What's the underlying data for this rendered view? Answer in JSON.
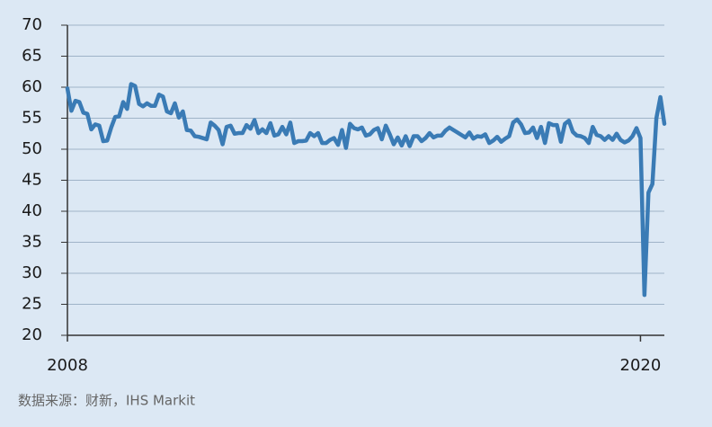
{
  "chart_data": {
    "type": "line",
    "x": [
      2008,
      2008.083,
      2008.167,
      2008.25,
      2008.333,
      2008.417,
      2008.5,
      2008.583,
      2008.667,
      2008.75,
      2008.833,
      2008.917,
      2009,
      2009.083,
      2009.167,
      2009.25,
      2009.333,
      2009.417,
      2009.5,
      2009.583,
      2009.667,
      2009.75,
      2009.833,
      2009.917,
      2010,
      2010.083,
      2010.167,
      2010.25,
      2010.333,
      2010.417,
      2010.5,
      2010.583,
      2010.667,
      2010.75,
      2010.833,
      2010.917,
      2011,
      2011.083,
      2011.167,
      2011.25,
      2011.333,
      2011.417,
      2011.5,
      2011.583,
      2011.667,
      2011.75,
      2011.833,
      2011.917,
      2012,
      2012.083,
      2012.167,
      2012.25,
      2012.333,
      2012.417,
      2012.5,
      2012.583,
      2012.667,
      2012.75,
      2012.833,
      2012.917,
      2013,
      2013.083,
      2013.167,
      2013.25,
      2013.333,
      2013.417,
      2013.5,
      2013.583,
      2013.667,
      2013.75,
      2013.833,
      2013.917,
      2014,
      2014.083,
      2014.167,
      2014.25,
      2014.333,
      2014.417,
      2014.5,
      2014.583,
      2014.667,
      2014.75,
      2014.833,
      2014.917,
      2015,
      2015.083,
      2015.167,
      2015.25,
      2015.333,
      2015.417,
      2015.5,
      2015.583,
      2015.667,
      2015.75,
      2015.833,
      2015.917,
      2016,
      2016.083,
      2016.167,
      2016.25,
      2016.333,
      2016.417,
      2016.5,
      2016.583,
      2016.667,
      2016.75,
      2016.833,
      2016.917,
      2017,
      2017.083,
      2017.167,
      2017.25,
      2017.333,
      2017.417,
      2017.5,
      2017.583,
      2017.667,
      2017.75,
      2017.833,
      2017.917,
      2018,
      2018.083,
      2018.167,
      2018.25,
      2018.333,
      2018.417,
      2018.5,
      2018.583,
      2018.667,
      2018.75,
      2018.833,
      2018.917,
      2019,
      2019.083,
      2019.167,
      2019.25,
      2019.333,
      2019.417,
      2019.5,
      2019.583,
      2019.667,
      2019.75,
      2019.833,
      2019.917,
      2020,
      2020.083,
      2020.167,
      2020.25,
      2020.333,
      2020.417,
      2020.5
    ],
    "values": [
      59.8,
      56.2,
      57.8,
      57.6,
      55.9,
      55.7,
      53.2,
      54.0,
      53.8,
      51.3,
      51.4,
      53.5,
      55.2,
      55.3,
      57.6,
      56.5,
      60.5,
      60.2,
      57.3,
      56.9,
      57.4,
      57.0,
      57.0,
      58.8,
      58.5,
      56.1,
      55.8,
      57.4,
      55.1,
      56.1,
      53.1,
      53.0,
      52.1,
      52.0,
      51.8,
      51.6,
      54.3,
      53.8,
      53.1,
      50.8,
      53.6,
      53.8,
      52.5,
      52.6,
      52.6,
      53.9,
      53.3,
      54.7,
      52.6,
      53.2,
      52.6,
      54.2,
      52.2,
      52.4,
      53.6,
      52.4,
      54.3,
      51.0,
      51.3,
      51.3,
      51.4,
      52.6,
      52.1,
      52.6,
      51.0,
      51.0,
      51.5,
      51.8,
      50.7,
      53.1,
      50.2,
      54.1,
      53.4,
      53.2,
      53.5,
      52.2,
      52.4,
      53.1,
      53.4,
      51.6,
      53.8,
      52.4,
      50.8,
      51.9,
      50.6,
      52.1,
      50.5,
      52.1,
      52.1,
      51.3,
      51.8,
      52.6,
      51.9,
      52.2,
      52.2,
      53.0,
      53.5,
      53.1,
      52.7,
      52.3,
      51.9,
      52.7,
      51.7,
      52.1,
      52.0,
      52.4,
      51.0,
      51.4,
      52.0,
      51.2,
      51.7,
      52.1,
      54.3,
      54.8,
      54.0,
      52.6,
      52.7,
      53.5,
      51.8,
      53.6,
      51.0,
      54.2,
      53.9,
      53.9,
      51.2,
      54.1,
      54.6,
      52.8,
      52.2,
      52.1,
      51.8,
      51.0,
      53.6,
      52.3,
      52.1,
      51.5,
      52.1,
      51.5,
      52.5,
      51.5,
      51.1,
      51.4,
      52.1,
      53.4,
      51.8,
      26.5,
      43.0,
      44.4,
      55.0,
      58.4,
      54.1
    ],
    "color": "#3a7bb5",
    "xlim": [
      2008,
      2020.5
    ],
    "xticks": [
      2008,
      2020
    ],
    "ylim": [
      20,
      70
    ],
    "yticks": [
      20,
      25,
      30,
      35,
      40,
      45,
      50,
      55,
      60,
      65,
      70
    ],
    "grid": true,
    "source": "数据来源：财新，IHS Markit"
  }
}
